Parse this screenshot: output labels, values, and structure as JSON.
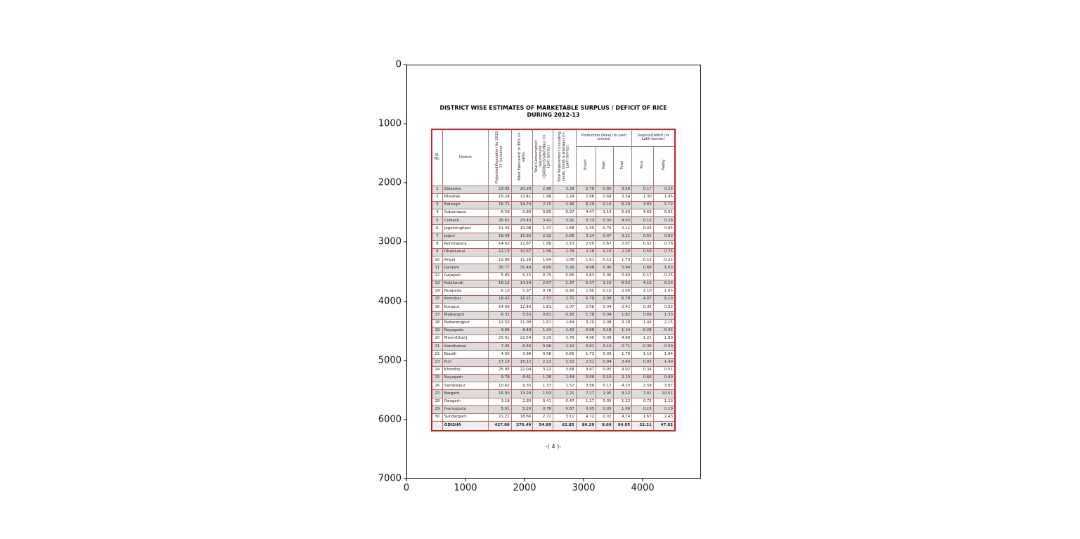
{
  "figure": {
    "x_ticks": [
      "0",
      "1000",
      "2000",
      "3000",
      "4000"
    ],
    "y_ticks": [
      "0",
      "1000",
      "2000",
      "3000",
      "4000",
      "5000",
      "6000",
      "7000"
    ]
  },
  "document": {
    "title_line1": "DISTRICT WISE ESTIMATES OF MARKETABLE SURPLUS / DEFICIT OF RICE",
    "title_line2": "DURING 2012-13",
    "footer_mark": "-( 4 )-",
    "table": {
      "col_headers": {
        "sl": "Sl. No.",
        "district": "District",
        "pop": "Projected Population for 2012-13 (in lakhs)",
        "adult": "Adult Equivalent to 88% (in lakhs)",
        "cons": "Total Consumption requirement (@400gms/adult/day) (in Lakh tonnes)",
        "req": "Total Requirement (including seeds, feeds & wastage) (in Lakh tonnes)",
        "production_group": "Production (Rice) (In Lakh tonnes)",
        "kharif": "Kharif",
        "rabi": "Rabi",
        "total": "Total",
        "surplus_group": "Surplus/Deficit (In Lakh tonnes)",
        "rice": "Rice",
        "paddy": "Paddy"
      },
      "rows": [
        {
          "sl": "1",
          "district": "Balasore",
          "pop": "23.05",
          "adult": "20.28",
          "cons": "2.96",
          "req": "3.39",
          "kharif": "2.76",
          "rabi": "0.80",
          "total": "3.56",
          "rice": "0.17",
          "paddy": "0.25"
        },
        {
          "sl": "2",
          "district": "Bhadrak",
          "pop": "15.24",
          "adult": "13.41",
          "cons": "1.96",
          "req": "2.24",
          "kharif": "2.86",
          "rabi": "0.68",
          "total": "3.54",
          "rice": "1.30",
          "paddy": "1.95"
        },
        {
          "sl": "3",
          "district": "Balangir",
          "pop": "16.71",
          "adult": "14.70",
          "cons": "2.15",
          "req": "2.46",
          "kharif": "6.19",
          "rabi": "0.10",
          "total": "6.29",
          "rice": "3.83",
          "paddy": "5.72"
        },
        {
          "sl": "4",
          "district": "Subarnapur",
          "pop": "6.59",
          "adult": "5.80",
          "cons": "0.85",
          "req": "0.97",
          "kharif": "4.47",
          "rabi": "1.13",
          "total": "5.60",
          "rice": "4.63",
          "paddy": "6.91"
        },
        {
          "sl": "5",
          "district": "Cuttack",
          "pop": "26.62",
          "adult": "23.43",
          "cons": "3.42",
          "req": "3.91",
          "kharif": "3.73",
          "rabi": "0.30",
          "total": "4.03",
          "rice": "0.12",
          "paddy": "0.18"
        },
        {
          "sl": "6",
          "district": "Jagatsinghpur",
          "pop": "11.45",
          "adult": "10.08",
          "cons": "1.47",
          "req": "1.68",
          "kharif": "1.35",
          "rabi": "0.76",
          "total": "2.11",
          "rice": "0.43",
          "paddy": "0.65"
        },
        {
          "sl": "7",
          "district": "Jajpur",
          "pop": "18.09",
          "adult": "15.92",
          "cons": "2.32",
          "req": "2.66",
          "kharif": "3.14",
          "rabi": "0.07",
          "total": "3.21",
          "rice": "0.55",
          "paddy": "0.83"
        },
        {
          "sl": "8",
          "district": "Kendrapara",
          "pop": "14.62",
          "adult": "12.87",
          "cons": "1.88",
          "req": "2.15",
          "kharif": "2.00",
          "rabi": "0.67",
          "total": "2.67",
          "rice": "0.52",
          "paddy": "0.78"
        },
        {
          "sl": "9",
          "district": "Dhenkanal",
          "pop": "12.13",
          "adult": "10.67",
          "cons": "1.56",
          "req": "1.78",
          "kharif": "2.18",
          "rabi": "0.10",
          "total": "2.28",
          "rice": "0.50",
          "paddy": "0.75"
        },
        {
          "sl": "10",
          "district": "Angul",
          "pop": "12.80",
          "adult": "11.26",
          "cons": "1.64",
          "req": "1.88",
          "kharif": "1.61",
          "rabi": "0.12",
          "total": "1.73",
          "rice": "-0.15",
          "paddy": "-0.22"
        },
        {
          "sl": "11",
          "district": "Ganjam",
          "pop": "35.77",
          "adult": "31.48",
          "cons": "4.60",
          "req": "5.26",
          "kharif": "4.98",
          "rabi": "0.96",
          "total": "5.94",
          "rice": "0.68",
          "paddy": "1.03"
        },
        {
          "sl": "12",
          "district": "Gajapati",
          "pop": "5.85",
          "adult": "5.15",
          "cons": "0.75",
          "req": "0.86",
          "kharif": "0.63",
          "rabi": "0.06",
          "total": "0.69",
          "rice": "-0.17",
          "paddy": "-0.25"
        },
        {
          "sl": "13",
          "district": "Kalahandi",
          "pop": "16.12",
          "adult": "14.19",
          "cons": "2.07",
          "req": "2.37",
          "kharif": "5.37",
          "rabi": "1.15",
          "total": "6.52",
          "rice": "4.15",
          "paddy": "6.23"
        },
        {
          "sl": "14",
          "district": "Nuapada",
          "pop": "6.10",
          "adult": "5.37",
          "cons": "0.78",
          "req": "0.90",
          "kharif": "1.90",
          "rabi": "0.10",
          "total": "2.00",
          "rice": "1.10",
          "paddy": "1.65"
        },
        {
          "sl": "15",
          "district": "Keonjhar",
          "pop": "18.42",
          "adult": "16.21",
          "cons": "2.37",
          "req": "2.71",
          "kharif": "6.70",
          "rabi": "0.08",
          "total": "6.78",
          "rice": "4.07",
          "paddy": "6.10"
        },
        {
          "sl": "16",
          "district": "Koraput",
          "pop": "14.09",
          "adult": "12.40",
          "cons": "1.81",
          "req": "2.07",
          "kharif": "2.08",
          "rabi": "0.34",
          "total": "2.42",
          "rice": "0.35",
          "paddy": "0.52"
        },
        {
          "sl": "17",
          "district": "Malkangiri",
          "pop": "6.31",
          "adult": "5.55",
          "cons": "0.81",
          "req": "0.93",
          "kharif": "1.78",
          "rabi": "0.04",
          "total": "1.82",
          "rice": "0.89",
          "paddy": "1.33"
        },
        {
          "sl": "18",
          "district": "Nabarangpur",
          "pop": "12.50",
          "adult": "11.00",
          "cons": "1.61",
          "req": "1.84",
          "kharif": "3.20",
          "rabi": "0.08",
          "total": "3.28",
          "rice": "1.44",
          "paddy": "2.15"
        },
        {
          "sl": "19",
          "district": "Rayagada",
          "pop": "9.65",
          "adult": "8.49",
          "cons": "1.24",
          "req": "1.42",
          "kharif": "0.96",
          "rabi": "0.18",
          "total": "1.14",
          "rice": "-0.28",
          "paddy": "-0.42"
        },
        {
          "sl": "20",
          "district": "Mayurbhanj",
          "pop": "25.61",
          "adult": "22.54",
          "cons": "3.29",
          "req": "3.76",
          "kharif": "4.90",
          "rabi": "0.08",
          "total": "4.98",
          "rice": "1.22",
          "paddy": "1.83"
        },
        {
          "sl": "21",
          "district": "Kandhamal",
          "pop": "7.45",
          "adult": "6.56",
          "cons": "0.96",
          "req": "1.10",
          "kharif": "0.61",
          "rabi": "0.10",
          "total": "0.71",
          "rice": "-0.39",
          "paddy": "-0.59"
        },
        {
          "sl": "22",
          "district": "Boudh",
          "pop": "4.50",
          "adult": "3.96",
          "cons": "0.58",
          "req": "0.66",
          "kharif": "1.73",
          "rabi": "0.03",
          "total": "1.76",
          "rice": "1.10",
          "paddy": "1.64"
        },
        {
          "sl": "23",
          "district": "Puri",
          "pop": "17.18",
          "adult": "15.12",
          "cons": "2.21",
          "req": "2.52",
          "kharif": "2.51",
          "rabi": "0.94",
          "total": "3.45",
          "rice": "0.93",
          "paddy": "1.40"
        },
        {
          "sl": "24",
          "district": "Khordha",
          "pop": "25.05",
          "adult": "22.04",
          "cons": "3.22",
          "req": "3.68",
          "kharif": "3.97",
          "rabi": "0.05",
          "total": "4.02",
          "rice": "0.34",
          "paddy": "0.51"
        },
        {
          "sl": "25",
          "district": "Nayagarh",
          "pop": "9.78",
          "adult": "8.61",
          "cons": "1.26",
          "req": "1.44",
          "kharif": "2.00",
          "rabi": "0.10",
          "total": "2.10",
          "rice": "0.66",
          "paddy": "0.99"
        },
        {
          "sl": "26",
          "district": "Sambalpur",
          "pop": "10.62",
          "adult": "9.35",
          "cons": "1.37",
          "req": "1.57",
          "kharif": "3.98",
          "rabi": "0.17",
          "total": "4.15",
          "rice": "2.58",
          "paddy": "3.87"
        },
        {
          "sl": "27",
          "district": "Bargarh",
          "pop": "15.00",
          "adult": "13.20",
          "cons": "1.93",
          "req": "2.21",
          "kharif": "7.17",
          "rabi": "2.05",
          "total": "9.22",
          "rice": "7.01",
          "paddy": "10.51"
        },
        {
          "sl": "28",
          "district": "Deogarh",
          "pop": "3.18",
          "adult": "2.80",
          "cons": "0.41",
          "req": "0.47",
          "kharif": "1.17",
          "rabi": "0.05",
          "total": "1.22",
          "rice": "0.75",
          "paddy": "1.13"
        },
        {
          "sl": "29",
          "district": "Jharsuguda",
          "pop": "5.91",
          "adult": "5.20",
          "cons": "0.76",
          "req": "0.87",
          "kharif": "0.95",
          "rabi": "0.05",
          "total": "1.00",
          "rice": "0.13",
          "paddy": "0.19"
        },
        {
          "sl": "30",
          "district": "Sundargarh",
          "pop": "21.21",
          "adult": "18.66",
          "cons": "2.72",
          "req": "3.11",
          "kharif": "4.72",
          "rabi": "0.02",
          "total": "4.74",
          "rice": "1.63",
          "paddy": "2.43"
        }
      ],
      "total_row": {
        "sl": "",
        "district": "ODISHA",
        "pop": "427.80",
        "adult": "376.49",
        "cons": "54.99",
        "req": "62.85",
        "kharif": "86.29",
        "rabi": "8.66",
        "total": "94.95",
        "rice": "32.11",
        "paddy": "47.92"
      }
    }
  }
}
